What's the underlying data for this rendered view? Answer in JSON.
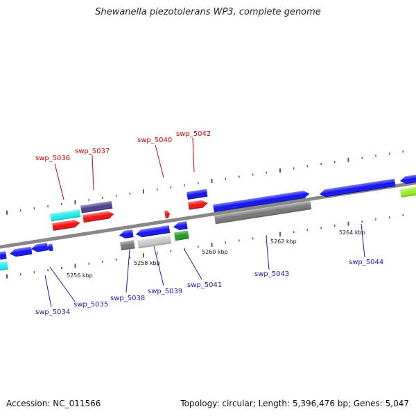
{
  "title": "Shewanella piezotolerans WP3, complete genome",
  "accession_text": "Accession: NC_011566",
  "summary_text": "Topology: circular; Length: 5,396,476 bp; Genes: 5,047",
  "scale_labels": [
    "5256 kbp",
    "5258 kbp",
    "5260 kbp",
    "5262 kbp",
    "5264 kbp"
  ],
  "upper_gene_labels": [
    "swp_5036",
    "swp_5037",
    "swp_5040",
    "swp_5042"
  ],
  "lower_gene_labels": [
    "swp_5034",
    "swp_5035",
    "swp_5038",
    "swp_5039",
    "swp_5041",
    "swp_5043",
    "swp_5044"
  ],
  "colors": {
    "upper_label": "#cc0000",
    "lower_label": "#1a1aaa",
    "backbone": "#888888",
    "tick": "#2a7a2a",
    "gene_blue": "#1111ee",
    "gene_red": "#ee1111",
    "gene_cyan": "#22eeee",
    "gene_purple": "#4a3e8c",
    "gene_gray": "#777777",
    "gene_lightgray": "#c8c8c8",
    "gene_green": "#229922",
    "gene_lime": "#99ee22"
  }
}
